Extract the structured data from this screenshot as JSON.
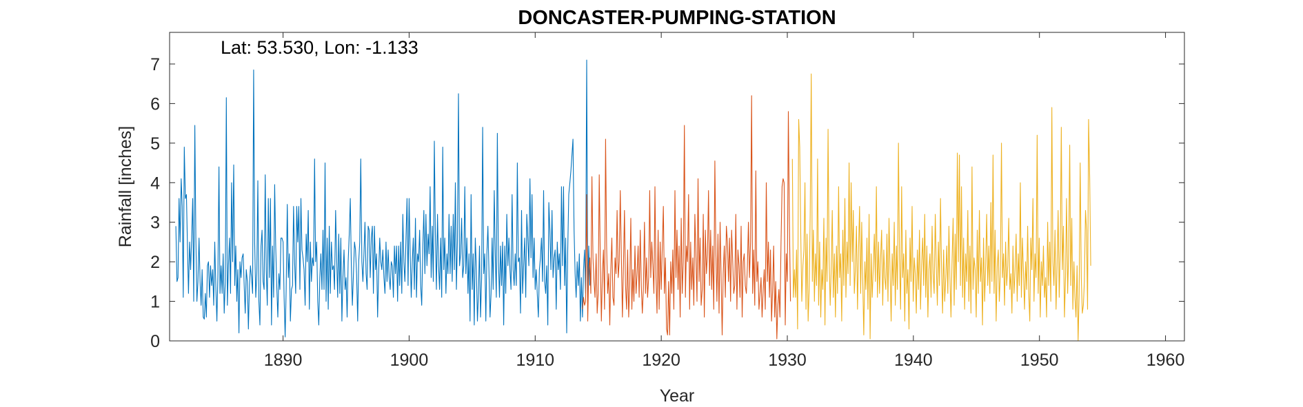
{
  "chart_data": {
    "type": "line",
    "title": "DONCASTER-PUMPING-STATION",
    "annotation": "Lat: 53.530, Lon: -1.133",
    "xlabel": "Year",
    "ylabel": "Rainfall [inches]",
    "xlim": [
      1881,
      1961.5
    ],
    "ylim": [
      0,
      7.8
    ],
    "xticks": [
      1890,
      1900,
      1910,
      1920,
      1930,
      1940,
      1950,
      1960
    ],
    "yticks": [
      0,
      1,
      2,
      3,
      4,
      5,
      6,
      7
    ],
    "grid": false,
    "legend": "none",
    "resolution": "monthly",
    "series": [
      {
        "color": "#0072BD",
        "start": 1881.5,
        "values": [
          2.9,
          1.5,
          1.6,
          3.6,
          2.5,
          4.1,
          3.4,
          1.1,
          4.9,
          3.6,
          3.7,
          2.4,
          1.2,
          2.5,
          1.8,
          2.6,
          3.6,
          1.0,
          5.45,
          2.6,
          1.0,
          1.5,
          2.6,
          1.5,
          0.9,
          1.8,
          0.6,
          0.55,
          1.2,
          0.6,
          1.9,
          2.0,
          1.1,
          1.9,
          1.4,
          1.8,
          0.9,
          2.5,
          1.4,
          0.5,
          1.7,
          4.4,
          1.2,
          1.9,
          1.2,
          2.2,
          0.7,
          1.5,
          6.15,
          0.9,
          1.9,
          2.6,
          1.2,
          4.0,
          2.0,
          4.45,
          1.4,
          2.4,
          1.0,
          1.8,
          0.2,
          2.0,
          1.6,
          2.1,
          2.2,
          1.4,
          0.7,
          1.8,
          1.5,
          0.3,
          1.4,
          1.9,
          1.6,
          1.2,
          6.85,
          2.5,
          1.1,
          1.7,
          4.05,
          1.0,
          0.4,
          2.4,
          2.8,
          1.5,
          1.3,
          4.2,
          1.8,
          0.9,
          3.6,
          1.6,
          3.6,
          0.4,
          2.4,
          1.1,
          3.95,
          2.4,
          1.4,
          0.6,
          1.7,
          1.3,
          2.6,
          2.6,
          2.5,
          1.1,
          0.1,
          1.3,
          3.45,
          1.6,
          2.2,
          0.5,
          1.3,
          1.4,
          3.4,
          2.0,
          1.2,
          3.4,
          2.5,
          3.4,
          1.3,
          3.6,
          2.3,
          2.1,
          1.8,
          0.9,
          2.7,
          2.0,
          3.3,
          0.8,
          2.5,
          1.5,
          2.1,
          1.9,
          4.6,
          2.0,
          2.5,
          1.0,
          0.4,
          1.6,
          2.2,
          1.3,
          2.8,
          1.3,
          4.5,
          1.0,
          2.6,
          0.8,
          2.9,
          1.2,
          2.5,
          1.8,
          1.9,
          1.3,
          3.3,
          2.1,
          1.1,
          2.7,
          1.2,
          2.6,
          0.5,
          1.6,
          2.3,
          1.3,
          1.6,
          0.6,
          2.0,
          2.7,
          3.6,
          1.9,
          0.9,
          1.7,
          2.5,
          2.3,
          1.7,
          0.5,
          2.0,
          2.5,
          4.6,
          2.0,
          1.5,
          2.2,
          3.0,
          1.7,
          1.3,
          2.9,
          2.8,
          1.6,
          2.6,
          2.9,
          1.2,
          2.9,
          1.8,
          2.2,
          0.6,
          1.7,
          2.6,
          2.0,
          1.8,
          2.3,
          1.6,
          1.2,
          2.5,
          1.5,
          2.3,
          1.6,
          1.3,
          2.0,
          1.9,
          1.1,
          2.4,
          1.7,
          2.4,
          1.0,
          2.4,
          1.4,
          2.5,
          1.2,
          3.2,
          2.0,
          1.5,
          2.6,
          3.6,
          1.4,
          3.6,
          2.2,
          1.1,
          2.0,
          2.6,
          1.3,
          3.1,
          1.1,
          2.2,
          2.0,
          2.8,
          1.4,
          0.9,
          2.3,
          3.3,
          1.7,
          3.2,
          1.9,
          2.7,
          2.2,
          3.9,
          1.6,
          2.9,
          1.5,
          5.05,
          2.7,
          1.3,
          3.2,
          1.9,
          1.3,
          2.6,
          1.1,
          4.9,
          1.8,
          2.6,
          1.2,
          2.2,
          1.7,
          3.2,
          1.7,
          2.9,
          1.5,
          3.2,
          1.8,
          4.0,
          1.3,
          2.5,
          6.25,
          1.9,
          2.2,
          3.1,
          1.6,
          1.9,
          3.9,
          1.7,
          2.6,
          1.2,
          2.2,
          0.5,
          3.7,
          1.3,
          2.2,
          0.4,
          2.6,
          1.8,
          0.5,
          1.2,
          2.4,
          0.6,
          1.6,
          5.4,
          1.7,
          2.2,
          0.5,
          2.2,
          2.9,
          1.8,
          0.6,
          1.2,
          2.6,
          1.3,
          3.8,
          2.2,
          1.1,
          5.25,
          2.0,
          1.1,
          2.4,
          1.4,
          2.5,
          0.4,
          2.4,
          1.2,
          3.2,
          1.9,
          2.6,
          1.8,
          1.3,
          3.7,
          1.8,
          1.4,
          2.2,
          1.4,
          4.5,
          2.0,
          2.1,
          0.7,
          3.3,
          1.2,
          1.9,
          2.6,
          1.1,
          3.2,
          2.6,
          1.9,
          4.1,
          2.1,
          3.7,
          1.6,
          2.6,
          1.3,
          1.8,
          1.2,
          0.6,
          1.8,
          2.1,
          2.6,
          1.5,
          3.8,
          1.5,
          1.2,
          1.9,
          0.4,
          3.5,
          2.8,
          1.8,
          3.3,
          1.6,
          2.1,
          2.3,
          0.8,
          2.5,
          1.8,
          2.2,
          1.3,
          3.9,
          1.9,
          3.9,
          1.4,
          2.6,
          0.2,
          2.3,
          3.7,
          4.0,
          4.3,
          4.7,
          5.1,
          2.8,
          1.7,
          1.1,
          2.0,
          1.4,
          2.2,
          0.5,
          1.6,
          0.6,
          1.8,
          2.3,
          1.2,
          7.1,
          1.1,
          2.4,
          1.4
        ]
      },
      {
        "color": "#D95319",
        "start": 1913.75,
        "values": [
          0.8,
          1.1,
          0.9,
          1.0,
          3.7,
          0.5,
          1.8,
          2.1,
          1.2,
          4.15,
          2.1,
          1.5,
          1.1,
          2.2,
          0.7,
          1.2,
          4.2,
          2.0,
          0.5,
          1.7,
          2.3,
          0.8,
          5.1,
          2.4,
          1.2,
          1.7,
          0.4,
          1.8,
          2.6,
          1.1,
          0.9,
          2.1,
          1.7,
          3.3,
          1.6,
          2.0,
          3.8,
          2.2,
          0.6,
          1.9,
          3.3,
          1.4,
          0.8,
          2.3,
          0.6,
          1.4,
          3.1,
          0.8,
          1.8,
          1.0,
          2.4,
          1.2,
          1.7,
          2.4,
          1.1,
          2.8,
          1.4,
          0.7,
          1.3,
          3.0,
          1.2,
          2.1,
          1.1,
          1.6,
          3.8,
          1.6,
          2.5,
          1.9,
          1.2,
          3.9,
          1.6,
          0.7,
          2.8,
          0.8,
          2.5,
          1.3,
          2.4,
          3.4,
          1.2,
          2.1,
          0.3,
          0.15,
          1.5,
          0.15,
          2.0,
          1.2,
          2.3,
          0.8,
          3.8,
          1.6,
          2.8,
          1.3,
          2.4,
          0.6,
          3.1,
          1.2,
          2.0,
          5.45,
          1.1,
          2.4,
          2.0,
          3.7,
          0.8,
          2.5,
          1.3,
          2.1,
          0.9,
          3.2,
          2.2,
          1.0,
          4.1,
          1.5,
          2.6,
          0.9,
          1.3,
          3.2,
          0.6,
          2.8,
          1.7,
          2.2,
          3.8,
          1.4,
          2.8,
          1.3,
          2.4,
          0.8,
          4.55,
          2.2,
          1.0,
          2.7,
          0.7,
          3.0,
          1.6,
          0.15,
          1.7,
          2.4,
          1.1,
          2.9,
          2.5,
          1.5,
          2.6,
          1.0,
          2.8,
          2.0,
          1.2,
          1.4,
          3.2,
          0.8,
          2.3,
          1.9,
          1.1,
          2.9,
          0.6,
          2.0,
          2.2,
          1.4,
          1.2,
          1.9,
          3.0,
          1.6,
          2.5,
          6.2,
          1.2,
          2.3,
          0.9,
          4.3,
          1.5,
          2.0,
          0.8,
          1.2,
          1.6,
          0.6,
          1.3,
          1.8,
          0.8,
          4.0,
          1.5,
          2.5,
          1.1,
          2.3,
          0.5,
          1.3,
          2.4,
          0.6,
          1.5,
          0.05,
          0.9,
          1.3,
          0.6,
          2.5,
          3.9,
          4.1,
          4.0,
          0.4,
          2.2,
          1.5,
          5.8,
          3.0,
          1.0
        ]
      },
      {
        "color": "#EDB120",
        "start": 1930.4,
        "values": [
          4.6,
          1.1,
          1.8,
          1.1,
          2.3,
          0.3,
          5.6,
          4.9,
          2.7,
          1.0,
          1.9,
          2.3,
          4.0,
          0.8,
          2.7,
          0.5,
          1.3,
          3.2,
          6.75,
          1.5,
          2.8,
          1.0,
          2.2,
          1.4,
          4.6,
          0.9,
          2.5,
          0.6,
          1.8,
          1.3,
          3.1,
          0.4,
          2.6,
          1.5,
          5.35,
          2.1,
          0.9,
          1.8,
          3.3,
          1.1,
          2.2,
          0.6,
          2.4,
          1.2,
          3.9,
          1.6,
          2.2,
          0.5,
          2.8,
          1.4,
          3.6,
          1.1,
          2.5,
          1.7,
          4.5,
          1.4,
          4.0,
          2.0,
          3.3,
          1.2,
          1.8,
          2.9,
          0.8,
          2.3,
          3.4,
          1.2,
          3.0,
          1.5,
          0.15,
          2.0,
          1.3,
          2.6,
          0.8,
          3.2,
          0.05,
          2.2,
          1.1,
          1.8,
          2.7,
          1.5,
          3.9,
          1.1,
          2.5,
          1.2,
          2.1,
          2.8,
          0.9,
          2.3,
          1.6,
          1.3,
          2.7,
          1.0,
          3.1,
          1.8,
          0.5,
          2.2,
          1.4,
          3.0,
          0.9,
          2.4,
          1.3,
          5.0,
          2.1,
          0.8,
          3.9,
          1.6,
          2.2,
          0.5,
          2.8,
          1.2,
          1.8,
          0.3,
          2.6,
          1.5,
          3.4,
          1.0,
          2.1,
          1.7,
          0.7,
          2.3,
          1.3,
          2.8,
          0.8,
          1.9,
          2.6,
          1.4,
          3.2,
          1.1,
          2.4,
          0.6,
          1.8,
          2.2,
          1.1,
          2.9,
          1.7,
          1.2,
          3.2,
          1.9,
          0.9,
          2.5,
          1.4,
          3.6,
          1.8,
          0.7,
          2.3,
          1.0,
          1.6,
          2.4,
          1.2,
          2.9,
          1.6,
          0.6,
          2.0,
          3.1,
          0.9,
          2.7,
          1.3,
          4.75,
          2.0,
          4.7,
          1.4,
          3.9,
          1.1,
          2.6,
          0.8,
          2.2,
          1.5,
          3.3,
          1.0,
          2.4,
          0.7,
          4.4,
          1.3,
          2.1,
          1.8,
          0.6,
          2.8,
          1.2,
          3.3,
          1.5,
          2.1,
          0.4,
          2.6,
          1.0,
          1.9,
          3.2,
          1.4,
          2.4,
          1.2,
          3.5,
          1.5,
          4.7,
          1.2,
          2.8,
          0.5,
          1.9,
          2.3,
          1.0,
          1.7,
          5.0,
          1.6,
          2.2,
          0.9,
          2.5,
          1.4,
          1.9,
          3.1,
          1.3,
          1.7,
          0.7,
          2.4,
          1.2,
          1.8,
          2.7,
          1.0,
          2.2,
          1.4,
          4.0,
          1.1,
          2.6,
          1.7,
          0.8,
          2.0,
          1.3,
          2.9,
          1.2,
          0.5,
          2.6,
          1.8,
          3.6,
          1.0,
          2.2,
          1.6,
          5.2,
          1.2,
          2.6,
          0.6,
          2.0,
          1.4,
          2.4,
          1.1,
          1.6,
          0.6,
          3.0,
          1.4,
          2.5,
          1.0,
          5.9,
          2.0,
          1.4,
          2.8,
          0.8,
          1.9,
          3.3,
          1.1,
          2.3,
          5.4,
          1.8,
          2.9,
          0.6,
          1.6,
          3.6,
          1.2,
          2.2,
          4.95,
          1.4,
          3.1,
          0.8,
          2.0,
          1.1,
          0.6,
          1.9,
          0.0,
          1.2,
          4.5,
          1.6,
          0.7,
          0.9,
          1.5,
          3.3,
          2.8,
          0.8,
          5.6,
          4.1,
          1.9
        ]
      }
    ]
  }
}
